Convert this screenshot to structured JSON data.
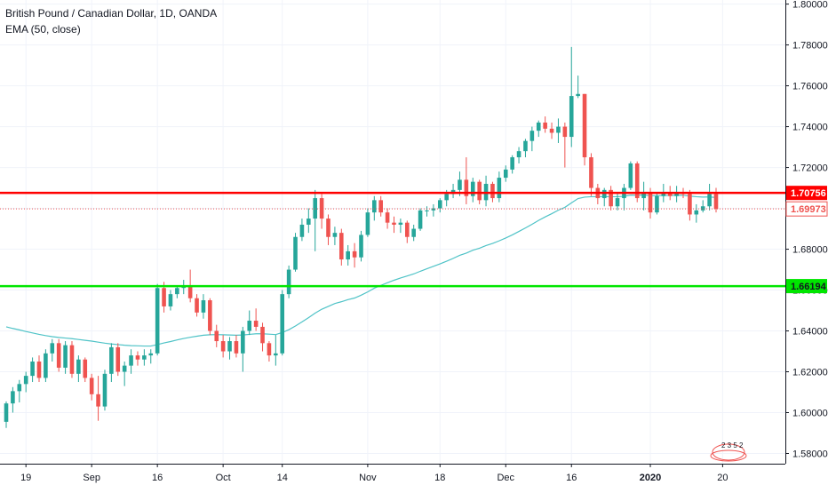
{
  "chart_data": {
    "type": "candlestick",
    "title": "British Pound / Canadian Dollar, 1D, OANDA",
    "indicator_label": "EMA (50, close)",
    "ylim": [
      1.575,
      1.802
    ],
    "y_ticks": [
      {
        "value": 1.58,
        "label": "1.58000"
      },
      {
        "value": 1.6,
        "label": "1.60000"
      },
      {
        "value": 1.62,
        "label": "1.62000"
      },
      {
        "value": 1.64,
        "label": "1.64000"
      },
      {
        "value": 1.66,
        "label": "1.66000"
      },
      {
        "value": 1.68,
        "label": "1.68000"
      },
      {
        "value": 1.7,
        "label": "1.70000"
      },
      {
        "value": 1.72,
        "label": "1.72000"
      },
      {
        "value": 1.74,
        "label": "1.74000"
      },
      {
        "value": 1.76,
        "label": "1.76000"
      },
      {
        "value": 1.78,
        "label": "1.78000"
      },
      {
        "value": 1.8,
        "label": "1.80000"
      }
    ],
    "x_ticks": [
      {
        "index": 3,
        "label": "19",
        "bold": false
      },
      {
        "index": 13,
        "label": "Sep",
        "bold": false
      },
      {
        "index": 23,
        "label": "16",
        "bold": false
      },
      {
        "index": 33,
        "label": "Oct",
        "bold": false
      },
      {
        "index": 42,
        "label": "14",
        "bold": false
      },
      {
        "index": 55,
        "label": "Nov",
        "bold": false
      },
      {
        "index": 66,
        "label": "18",
        "bold": false
      },
      {
        "index": 76,
        "label": "Dec",
        "bold": false
      },
      {
        "index": 86,
        "label": "16",
        "bold": false
      },
      {
        "index": 98,
        "label": "2020",
        "bold": true
      },
      {
        "index": 109,
        "label": "20",
        "bold": false
      }
    ],
    "horizontal_lines": [
      {
        "value": 1.70756,
        "label": "1.70756",
        "color": "#ff0000",
        "style": "solid"
      },
      {
        "value": 1.66194,
        "label": "1.66194",
        "color": "#00e600",
        "style": "solid"
      },
      {
        "value": 1.69973,
        "label": "1.69973",
        "color": "#ef5350",
        "style": "dotted"
      }
    ],
    "colors": {
      "up": "#26a69a",
      "down": "#ef5350",
      "ema": "#4fc3c7"
    },
    "candles": [
      [
        1.5955,
        1.6055,
        1.5925,
        1.6045
      ],
      [
        1.6045,
        1.6125,
        1.6,
        1.6105
      ],
      [
        1.6105,
        1.616,
        1.605,
        1.614
      ],
      [
        1.614,
        1.62,
        1.61,
        1.618
      ],
      [
        1.618,
        1.627,
        1.615,
        1.625
      ],
      [
        1.625,
        1.628,
        1.615,
        1.617
      ],
      [
        1.617,
        1.631,
        1.615,
        1.629
      ],
      [
        1.629,
        1.636,
        1.625,
        1.634
      ],
      [
        1.634,
        1.636,
        1.62,
        1.622
      ],
      [
        1.622,
        1.635,
        1.619,
        1.633
      ],
      [
        1.633,
        1.635,
        1.617,
        1.619
      ],
      [
        1.619,
        1.628,
        1.615,
        1.626
      ],
      [
        1.626,
        1.627,
        1.615,
        1.617
      ],
      [
        1.617,
        1.619,
        1.606,
        1.609
      ],
      [
        1.609,
        1.618,
        1.596,
        1.603
      ],
      [
        1.603,
        1.621,
        1.601,
        1.619
      ],
      [
        1.619,
        1.634,
        1.615,
        1.632
      ],
      [
        1.632,
        1.634,
        1.618,
        1.62
      ],
      [
        1.62,
        1.625,
        1.613,
        1.623
      ],
      [
        1.623,
        1.631,
        1.619,
        1.628
      ],
      [
        1.628,
        1.63,
        1.623,
        1.626
      ],
      [
        1.626,
        1.631,
        1.623,
        1.628
      ],
      [
        1.628,
        1.631,
        1.624,
        1.629
      ],
      [
        1.629,
        1.663,
        1.628,
        1.661
      ],
      [
        1.661,
        1.664,
        1.649,
        1.652
      ],
      [
        1.652,
        1.66,
        1.65,
        1.658
      ],
      [
        1.658,
        1.662,
        1.656,
        1.661
      ],
      [
        1.661,
        1.665,
        1.658,
        1.662
      ],
      [
        1.662,
        1.67,
        1.654,
        1.656
      ],
      [
        1.656,
        1.658,
        1.647,
        1.649
      ],
      [
        1.649,
        1.658,
        1.646,
        1.655
      ],
      [
        1.655,
        1.656,
        1.638,
        1.64
      ],
      [
        1.64,
        1.643,
        1.632,
        1.635
      ],
      [
        1.635,
        1.638,
        1.627,
        1.63
      ],
      [
        1.63,
        1.637,
        1.626,
        1.635
      ],
      [
        1.635,
        1.638,
        1.627,
        1.629
      ],
      [
        1.629,
        1.642,
        1.62,
        1.64
      ],
      [
        1.64,
        1.65,
        1.638,
        1.645
      ],
      [
        1.645,
        1.651,
        1.64,
        1.642
      ],
      [
        1.642,
        1.644,
        1.63,
        1.634
      ],
      [
        1.634,
        1.635,
        1.625,
        1.628
      ],
      [
        1.628,
        1.638,
        1.623,
        1.629
      ],
      [
        1.629,
        1.66,
        1.628,
        1.658
      ],
      [
        1.658,
        1.672,
        1.656,
        1.67
      ],
      [
        1.67,
        1.688,
        1.669,
        1.686
      ],
      [
        1.686,
        1.695,
        1.684,
        1.692
      ],
      [
        1.692,
        1.7,
        1.688,
        1.695
      ],
      [
        1.695,
        1.709,
        1.679,
        1.705
      ],
      [
        1.705,
        1.707,
        1.69,
        1.695
      ],
      [
        1.695,
        1.697,
        1.682,
        1.686
      ],
      [
        1.686,
        1.691,
        1.682,
        1.688
      ],
      [
        1.688,
        1.69,
        1.672,
        1.675
      ],
      [
        1.675,
        1.682,
        1.672,
        1.679
      ],
      [
        1.679,
        1.683,
        1.671,
        1.676
      ],
      [
        1.676,
        1.689,
        1.674,
        1.687
      ],
      [
        1.687,
        1.7,
        1.686,
        1.698
      ],
      [
        1.698,
        1.706,
        1.694,
        1.704
      ],
      [
        1.704,
        1.706,
        1.696,
        1.698
      ],
      [
        1.698,
        1.7,
        1.69,
        1.693
      ],
      [
        1.693,
        1.696,
        1.688,
        1.692
      ],
      [
        1.692,
        1.695,
        1.688,
        1.693
      ],
      [
        1.693,
        1.694,
        1.683,
        1.686
      ],
      [
        1.686,
        1.692,
        1.684,
        1.69
      ],
      [
        1.69,
        1.7,
        1.689,
        1.699
      ],
      [
        1.699,
        1.701,
        1.696,
        1.699
      ],
      [
        1.699,
        1.702,
        1.696,
        1.7
      ],
      [
        1.7,
        1.705,
        1.698,
        1.704
      ],
      [
        1.704,
        1.709,
        1.701,
        1.707
      ],
      [
        1.707,
        1.712,
        1.705,
        1.709
      ],
      [
        1.709,
        1.718,
        1.706,
        1.714
      ],
      [
        1.714,
        1.725,
        1.702,
        1.706
      ],
      [
        1.706,
        1.715,
        1.703,
        1.713
      ],
      [
        1.713,
        1.714,
        1.702,
        1.704
      ],
      [
        1.704,
        1.716,
        1.701,
        1.712
      ],
      [
        1.712,
        1.713,
        1.703,
        1.705
      ],
      [
        1.705,
        1.718,
        1.703,
        1.715
      ],
      [
        1.715,
        1.721,
        1.713,
        1.719
      ],
      [
        1.719,
        1.726,
        1.717,
        1.725
      ],
      [
        1.725,
        1.73,
        1.722,
        1.728
      ],
      [
        1.728,
        1.734,
        1.725,
        1.733
      ],
      [
        1.733,
        1.74,
        1.728,
        1.738
      ],
      [
        1.738,
        1.743,
        1.735,
        1.742
      ],
      [
        1.742,
        1.745,
        1.737,
        1.739
      ],
      [
        1.739,
        1.742,
        1.734,
        1.737
      ],
      [
        1.737,
        1.744,
        1.732,
        1.74
      ],
      [
        1.74,
        1.742,
        1.72,
        1.735
      ],
      [
        1.735,
        1.779,
        1.73,
        1.755
      ],
      [
        1.755,
        1.765,
        1.754,
        1.756
      ],
      [
        1.756,
        1.756,
        1.721,
        1.725
      ],
      [
        1.725,
        1.727,
        1.706,
        1.71
      ],
      [
        1.71,
        1.712,
        1.702,
        1.705
      ],
      [
        1.705,
        1.71,
        1.701,
        1.709
      ],
      [
        1.709,
        1.711,
        1.699,
        1.701
      ],
      [
        1.701,
        1.708,
        1.699,
        1.705
      ],
      [
        1.705,
        1.712,
        1.699,
        1.71
      ],
      [
        1.71,
        1.723,
        1.709,
        1.722
      ],
      [
        1.722,
        1.723,
        1.703,
        1.705
      ],
      [
        1.705,
        1.713,
        1.699,
        1.708
      ],
      [
        1.708,
        1.71,
        1.695,
        1.698
      ],
      [
        1.698,
        1.708,
        1.697,
        1.706
      ],
      [
        1.706,
        1.712,
        1.703,
        1.708
      ],
      [
        1.708,
        1.711,
        1.704,
        1.706
      ],
      [
        1.706,
        1.711,
        1.703,
        1.708
      ],
      [
        1.708,
        1.71,
        1.705,
        1.707
      ],
      [
        1.707,
        1.709,
        1.694,
        1.697
      ],
      [
        1.697,
        1.702,
        1.693,
        1.699
      ],
      [
        1.699,
        1.704,
        1.698,
        1.701
      ],
      [
        1.701,
        1.712,
        1.699,
        1.707
      ],
      [
        1.707,
        1.71,
        1.698,
        1.6997
      ]
    ],
    "ema": [
      1.642,
      1.6412,
      1.6405,
      1.6397,
      1.639,
      1.6383,
      1.6377,
      1.6372,
      1.6368,
      1.6365,
      1.6362,
      1.6358,
      1.6354,
      1.635,
      1.6345,
      1.634,
      1.6336,
      1.6333,
      1.633,
      1.6328,
      1.6327,
      1.6326,
      1.6326,
      1.6333,
      1.6341,
      1.6348,
      1.6356,
      1.6363,
      1.6369,
      1.6374,
      1.6379,
      1.6381,
      1.6382,
      1.6381,
      1.638,
      1.6379,
      1.638,
      1.6383,
      1.6386,
      1.6386,
      1.6384,
      1.6382,
      1.6392,
      1.6406,
      1.6424,
      1.6444,
      1.6465,
      1.6487,
      1.6506,
      1.652,
      1.6534,
      1.6543,
      1.6553,
      1.6561,
      1.6575,
      1.6591,
      1.6609,
      1.6623,
      1.6636,
      1.6648,
      1.6659,
      1.6669,
      1.6679,
      1.6692,
      1.6704,
      1.6716,
      1.6728,
      1.6741,
      1.6755,
      1.677,
      1.6781,
      1.6795,
      1.6805,
      1.6818,
      1.6828,
      1.6841,
      1.6855,
      1.687,
      1.6887,
      1.6904,
      1.6922,
      1.6941,
      1.6958,
      1.6974,
      1.6991,
      1.7005,
      1.7027,
      1.7048,
      1.7055,
      1.7057,
      1.7057,
      1.7058,
      1.7057,
      1.7057,
      1.7059,
      1.7065,
      1.7064,
      1.7065,
      1.7062,
      1.7062,
      1.7063,
      1.7063,
      1.7064,
      1.7064,
      1.706,
      1.7057,
      1.7055,
      1.7056,
      1.7053
    ]
  },
  "watermark_digits": "2 3 5 2"
}
